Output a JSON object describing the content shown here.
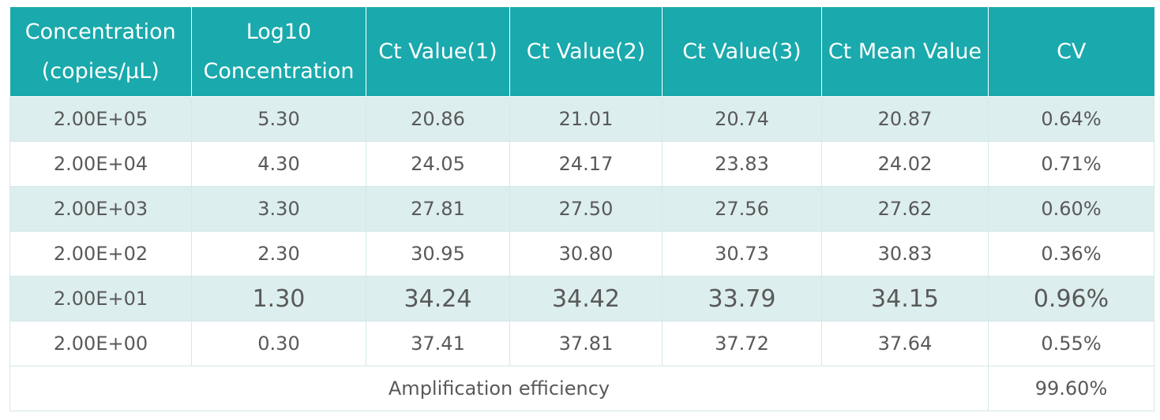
{
  "table": {
    "headers": [
      [
        "Concentration",
        "(copies/µL)"
      ],
      [
        "Log10",
        "Concentration"
      ],
      [
        "Ct Value(1)"
      ],
      [
        "Ct Value(2)"
      ],
      [
        "Ct Value(3)"
      ],
      [
        "Ct Mean Value"
      ],
      [
        "CV"
      ]
    ],
    "rows": [
      [
        "2.00E+05",
        "5.30",
        "20.86",
        "21.01",
        "20.74",
        "20.87",
        "0.64%"
      ],
      [
        "2.00E+04",
        "4.30",
        "24.05",
        "24.17",
        "23.83",
        "24.02",
        "0.71%"
      ],
      [
        "2.00E+03",
        "3.30",
        "27.81",
        "27.50",
        "27.56",
        "27.62",
        "0.60%"
      ],
      [
        "2.00E+02",
        "2.30",
        "30.95",
        "30.80",
        "30.73",
        "30.83",
        "0.36%"
      ],
      [
        "2.00E+01",
        "1.30",
        "34.24",
        "34.42",
        "33.79",
        "34.15",
        "0.96%"
      ],
      [
        "2.00E+00",
        "0.30",
        "37.41",
        "37.81",
        "37.72",
        "37.64",
        "0.55%"
      ]
    ],
    "footer": {
      "label": "Amplification efficiency",
      "value": "99.60%"
    }
  },
  "colors": {
    "header_bg": "#1aa9ac",
    "header_text": "#ffffff",
    "stripe_bg": "#dceeed",
    "body_text": "#595959"
  }
}
